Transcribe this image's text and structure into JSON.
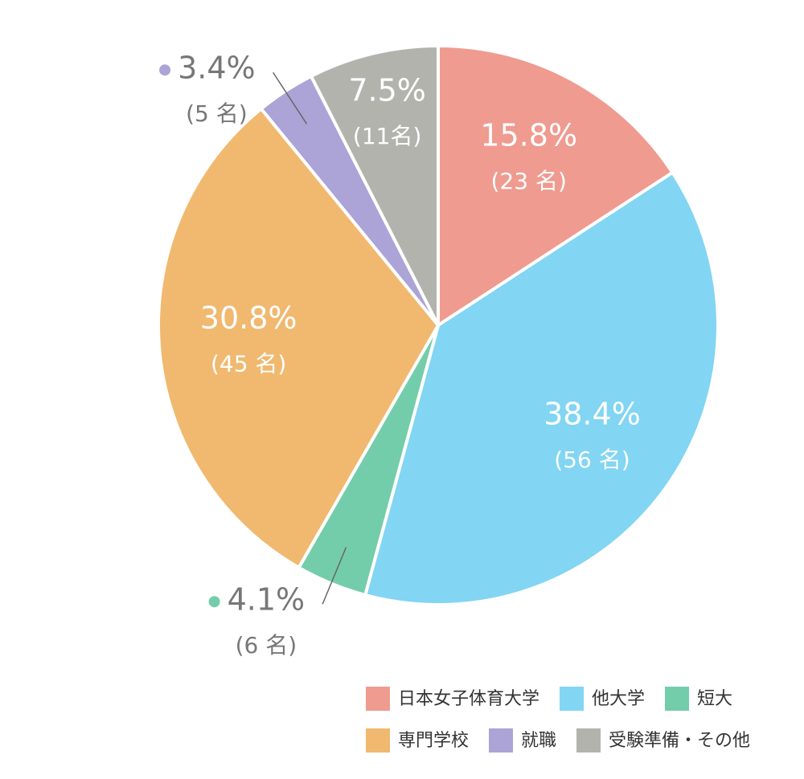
{
  "chart_data": {
    "type": "pie",
    "categories": [
      "日本女子体育大学",
      "他大学",
      "短大",
      "専門学校",
      "就職",
      "受験準備・その他"
    ],
    "values": [
      15.8,
      38.4,
      4.1,
      30.8,
      3.4,
      7.5
    ],
    "value_labels": [
      "15.8%",
      "38.4%",
      "4.1%",
      "30.8%",
      "3.4%",
      "7.5%"
    ],
    "count_labels": [
      "(23 名)",
      "(56 名)",
      "(6 名)",
      "(45 名)",
      "(5 名)",
      "(11名)"
    ],
    "colors": [
      "#ef9b90",
      "#82d5f3",
      "#74cdaa",
      "#f0b96f",
      "#aca4d6",
      "#b3b3ae"
    ]
  }
}
